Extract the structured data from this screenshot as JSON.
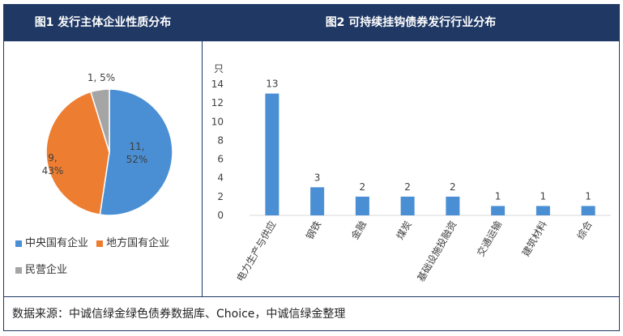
{
  "left_panel": {
    "title": "图1  发行主体企业性质分布"
  },
  "right_panel": {
    "title": "图2  可持续挂钩债券发行行业分布"
  },
  "source_note": "数据来源：中诚信绿金绿色债券数据库、Choice，中诚信绿金整理",
  "colors": {
    "header_bg": "#1f3864",
    "blue": "#4a8fd4",
    "orange": "#ed7d31",
    "gray": "#a5a5a5"
  },
  "chart_data": [
    {
      "type": "pie",
      "title": "图1  发行主体企业性质分布",
      "slices": [
        {
          "name": "中央国有企业",
          "value": 11,
          "percent": "52%",
          "label_line1": "11,",
          "label_line2": "52%",
          "color": "#4a8fd4"
        },
        {
          "name": "地方国有企业",
          "value": 9,
          "percent": "43%",
          "label_line1": "9,",
          "label_line2": "43%",
          "color": "#ed7d31"
        },
        {
          "name": "民营企业",
          "value": 1,
          "percent": "5%",
          "label_line1": "1, 5%",
          "label_line2": "",
          "color": "#a5a5a5"
        }
      ],
      "legend_position": "bottom"
    },
    {
      "type": "bar",
      "title": "图2  可持续挂钩债券发行行业分布",
      "unit_label": "只",
      "categories": [
        "电力生产与供应",
        "钢铁",
        "金融",
        "煤炭",
        "基础设施投融资",
        "交通运输",
        "建筑材料",
        "综合"
      ],
      "values": [
        13,
        3,
        2,
        2,
        2,
        1,
        1,
        1
      ],
      "data_labels": [
        "13",
        "3",
        "2",
        "2",
        "2",
        "1",
        "1",
        "1"
      ],
      "yticks": [
        "0",
        "2",
        "4",
        "6",
        "8",
        "10",
        "12",
        "14"
      ],
      "ylim": [
        0,
        14
      ],
      "color": "#4a8fd4"
    }
  ]
}
